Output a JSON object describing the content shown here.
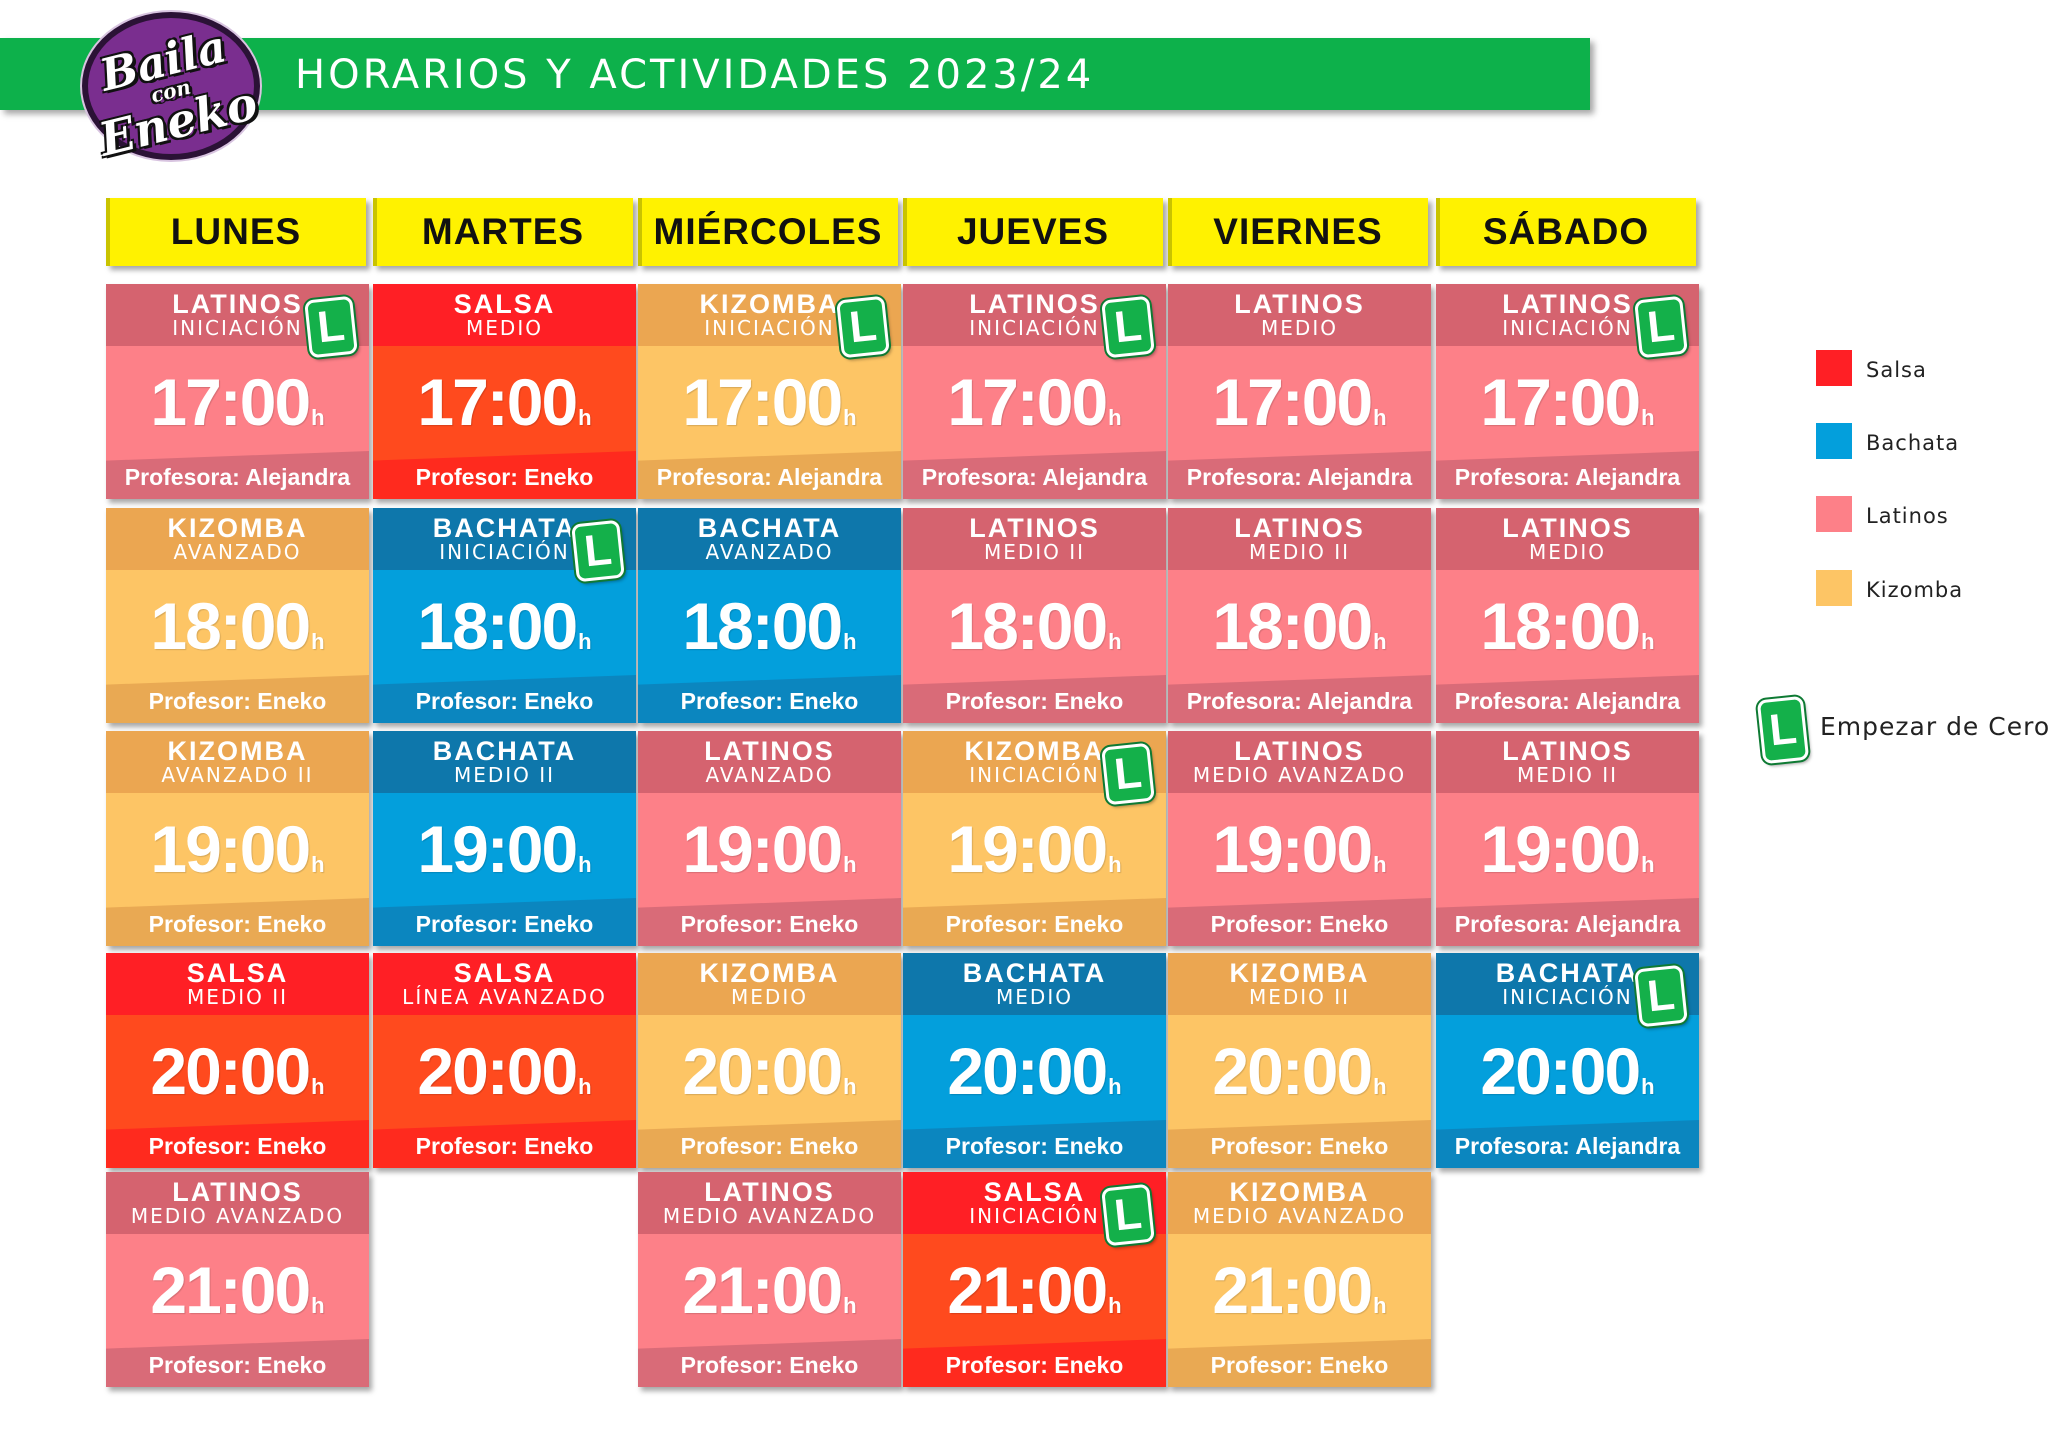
{
  "header": {
    "title": "HORARIOS  Y ACTIVIDADES  2023/24",
    "logo_lines": [
      "Baila",
      "con",
      "Eneko"
    ]
  },
  "days": [
    "LUNES",
    "MARTES",
    "MIÉRCOLES",
    "JUEVES",
    "VIERNES",
    "SÁBADO"
  ],
  "hour_suffix": "h",
  "badge_letter": "L",
  "colors": {
    "salsa": "#ff1f25",
    "bachata": "#039fdc",
    "latinos": "#fd8088",
    "kizomba": "#fdc565",
    "banner": "#0db14b",
    "day_header": "#fff200",
    "badge": "#14b04a"
  },
  "schedule": [
    [
      {
        "style": "latinos",
        "name": "LATINOS",
        "level": "INICIACIÓN",
        "time": "17:00",
        "teacher": "Profesora: Alejandra",
        "badge": true
      },
      {
        "style": "kizomba",
        "name": "KIZOMBA",
        "level": "AVANZADO",
        "time": "18:00",
        "teacher": "Profesor: Eneko",
        "badge": false
      },
      {
        "style": "kizomba",
        "name": "KIZOMBA",
        "level": "AVANZADO II",
        "time": "19:00",
        "teacher": "Profesor: Eneko",
        "badge": false
      },
      {
        "style": "salsa",
        "name": "SALSA",
        "level": "MEDIO II",
        "time": "20:00",
        "teacher": "Profesor: Eneko",
        "badge": false
      },
      {
        "style": "latinos",
        "name": "LATINOS",
        "level": "MEDIO AVANZADO",
        "time": "21:00",
        "teacher": "Profesor: Eneko",
        "badge": false
      }
    ],
    [
      {
        "style": "salsa",
        "name": "SALSA",
        "level": "MEDIO",
        "time": "17:00",
        "teacher": "Profesor: Eneko",
        "badge": false
      },
      {
        "style": "bachata",
        "name": "BACHATA",
        "level": "INICIACIÓN",
        "time": "18:00",
        "teacher": "Profesor: Eneko",
        "badge": true
      },
      {
        "style": "bachata",
        "name": "BACHATA",
        "level": "MEDIO II",
        "time": "19:00",
        "teacher": "Profesor: Eneko",
        "badge": false
      },
      {
        "style": "salsa",
        "name": "SALSA",
        "level": "LÍNEA AVANZADO",
        "time": "20:00",
        "teacher": "Profesor: Eneko",
        "badge": false
      }
    ],
    [
      {
        "style": "kizomba",
        "name": "KIZOMBA",
        "level": "INICIACIÓN",
        "time": "17:00",
        "teacher": "Profesora: Alejandra",
        "badge": true
      },
      {
        "style": "bachata",
        "name": "BACHATA",
        "level": "AVANZADO",
        "time": "18:00",
        "teacher": "Profesor: Eneko",
        "badge": false
      },
      {
        "style": "latinos",
        "name": "LATINOS",
        "level": "AVANZADO",
        "time": "19:00",
        "teacher": "Profesor: Eneko",
        "badge": false
      },
      {
        "style": "kizomba",
        "name": "KIZOMBA",
        "level": "MEDIO",
        "time": "20:00",
        "teacher": "Profesor: Eneko",
        "badge": false
      },
      {
        "style": "latinos",
        "name": "LATINOS",
        "level": "MEDIO AVANZADO",
        "time": "21:00",
        "teacher": "Profesor: Eneko",
        "badge": false
      }
    ],
    [
      {
        "style": "latinos",
        "name": "LATINOS",
        "level": "INICIACIÓN",
        "time": "17:00",
        "teacher": "Profesora: Alejandra",
        "badge": true
      },
      {
        "style": "latinos",
        "name": "LATINOS",
        "level": "MEDIO II",
        "time": "18:00",
        "teacher": "Profesor: Eneko",
        "badge": false
      },
      {
        "style": "kizomba",
        "name": "KIZOMBA",
        "level": "INICIACIÓN",
        "time": "19:00",
        "teacher": "Profesor: Eneko",
        "badge": true
      },
      {
        "style": "bachata",
        "name": "BACHATA",
        "level": "MEDIO",
        "time": "20:00",
        "teacher": "Profesor: Eneko",
        "badge": false
      },
      {
        "style": "salsa",
        "name": "SALSA",
        "level": "INICIACIÓN",
        "time": "21:00",
        "teacher": "Profesor: Eneko",
        "badge": true
      }
    ],
    [
      {
        "style": "latinos",
        "name": "LATINOS",
        "level": "MEDIO",
        "time": "17:00",
        "teacher": "Profesora: Alejandra",
        "badge": false
      },
      {
        "style": "latinos",
        "name": "LATINOS",
        "level": "MEDIO II",
        "time": "18:00",
        "teacher": "Profesora: Alejandra",
        "badge": false
      },
      {
        "style": "latinos",
        "name": "LATINOS",
        "level": "MEDIO AVANZADO",
        "time": "19:00",
        "teacher": "Profesor: Eneko",
        "badge": false
      },
      {
        "style": "kizomba",
        "name": "KIZOMBA",
        "level": "MEDIO II",
        "time": "20:00",
        "teacher": "Profesor: Eneko",
        "badge": false
      },
      {
        "style": "kizomba",
        "name": "KIZOMBA",
        "level": "MEDIO AVANZADO",
        "time": "21:00",
        "teacher": "Profesor: Eneko",
        "badge": false
      }
    ],
    [
      {
        "style": "latinos",
        "name": "LATINOS",
        "level": "INICIACIÓN",
        "time": "17:00",
        "teacher": "Profesora: Alejandra",
        "badge": true
      },
      {
        "style": "latinos",
        "name": "LATINOS",
        "level": "MEDIO",
        "time": "18:00",
        "teacher": "Profesora: Alejandra",
        "badge": false
      },
      {
        "style": "latinos",
        "name": "LATINOS",
        "level": "MEDIO II",
        "time": "19:00",
        "teacher": "Profesora: Alejandra",
        "badge": false
      },
      {
        "style": "bachata",
        "name": "BACHATA",
        "level": "INICIACIÓN",
        "time": "20:00",
        "teacher": "Profesora: Alejandra",
        "badge": true
      }
    ]
  ],
  "legend": {
    "items": [
      {
        "style": "salsa",
        "label": "Salsa",
        "color": "#ff1f25"
      },
      {
        "style": "bachata",
        "label": "Bachata",
        "color": "#039fdc"
      },
      {
        "style": "latinos",
        "label": "Latinos",
        "color": "#fd8088"
      },
      {
        "style": "kizomba",
        "label": "Kizomba",
        "color": "#fdc565"
      }
    ],
    "badge_label": "Empezar de Cero"
  }
}
